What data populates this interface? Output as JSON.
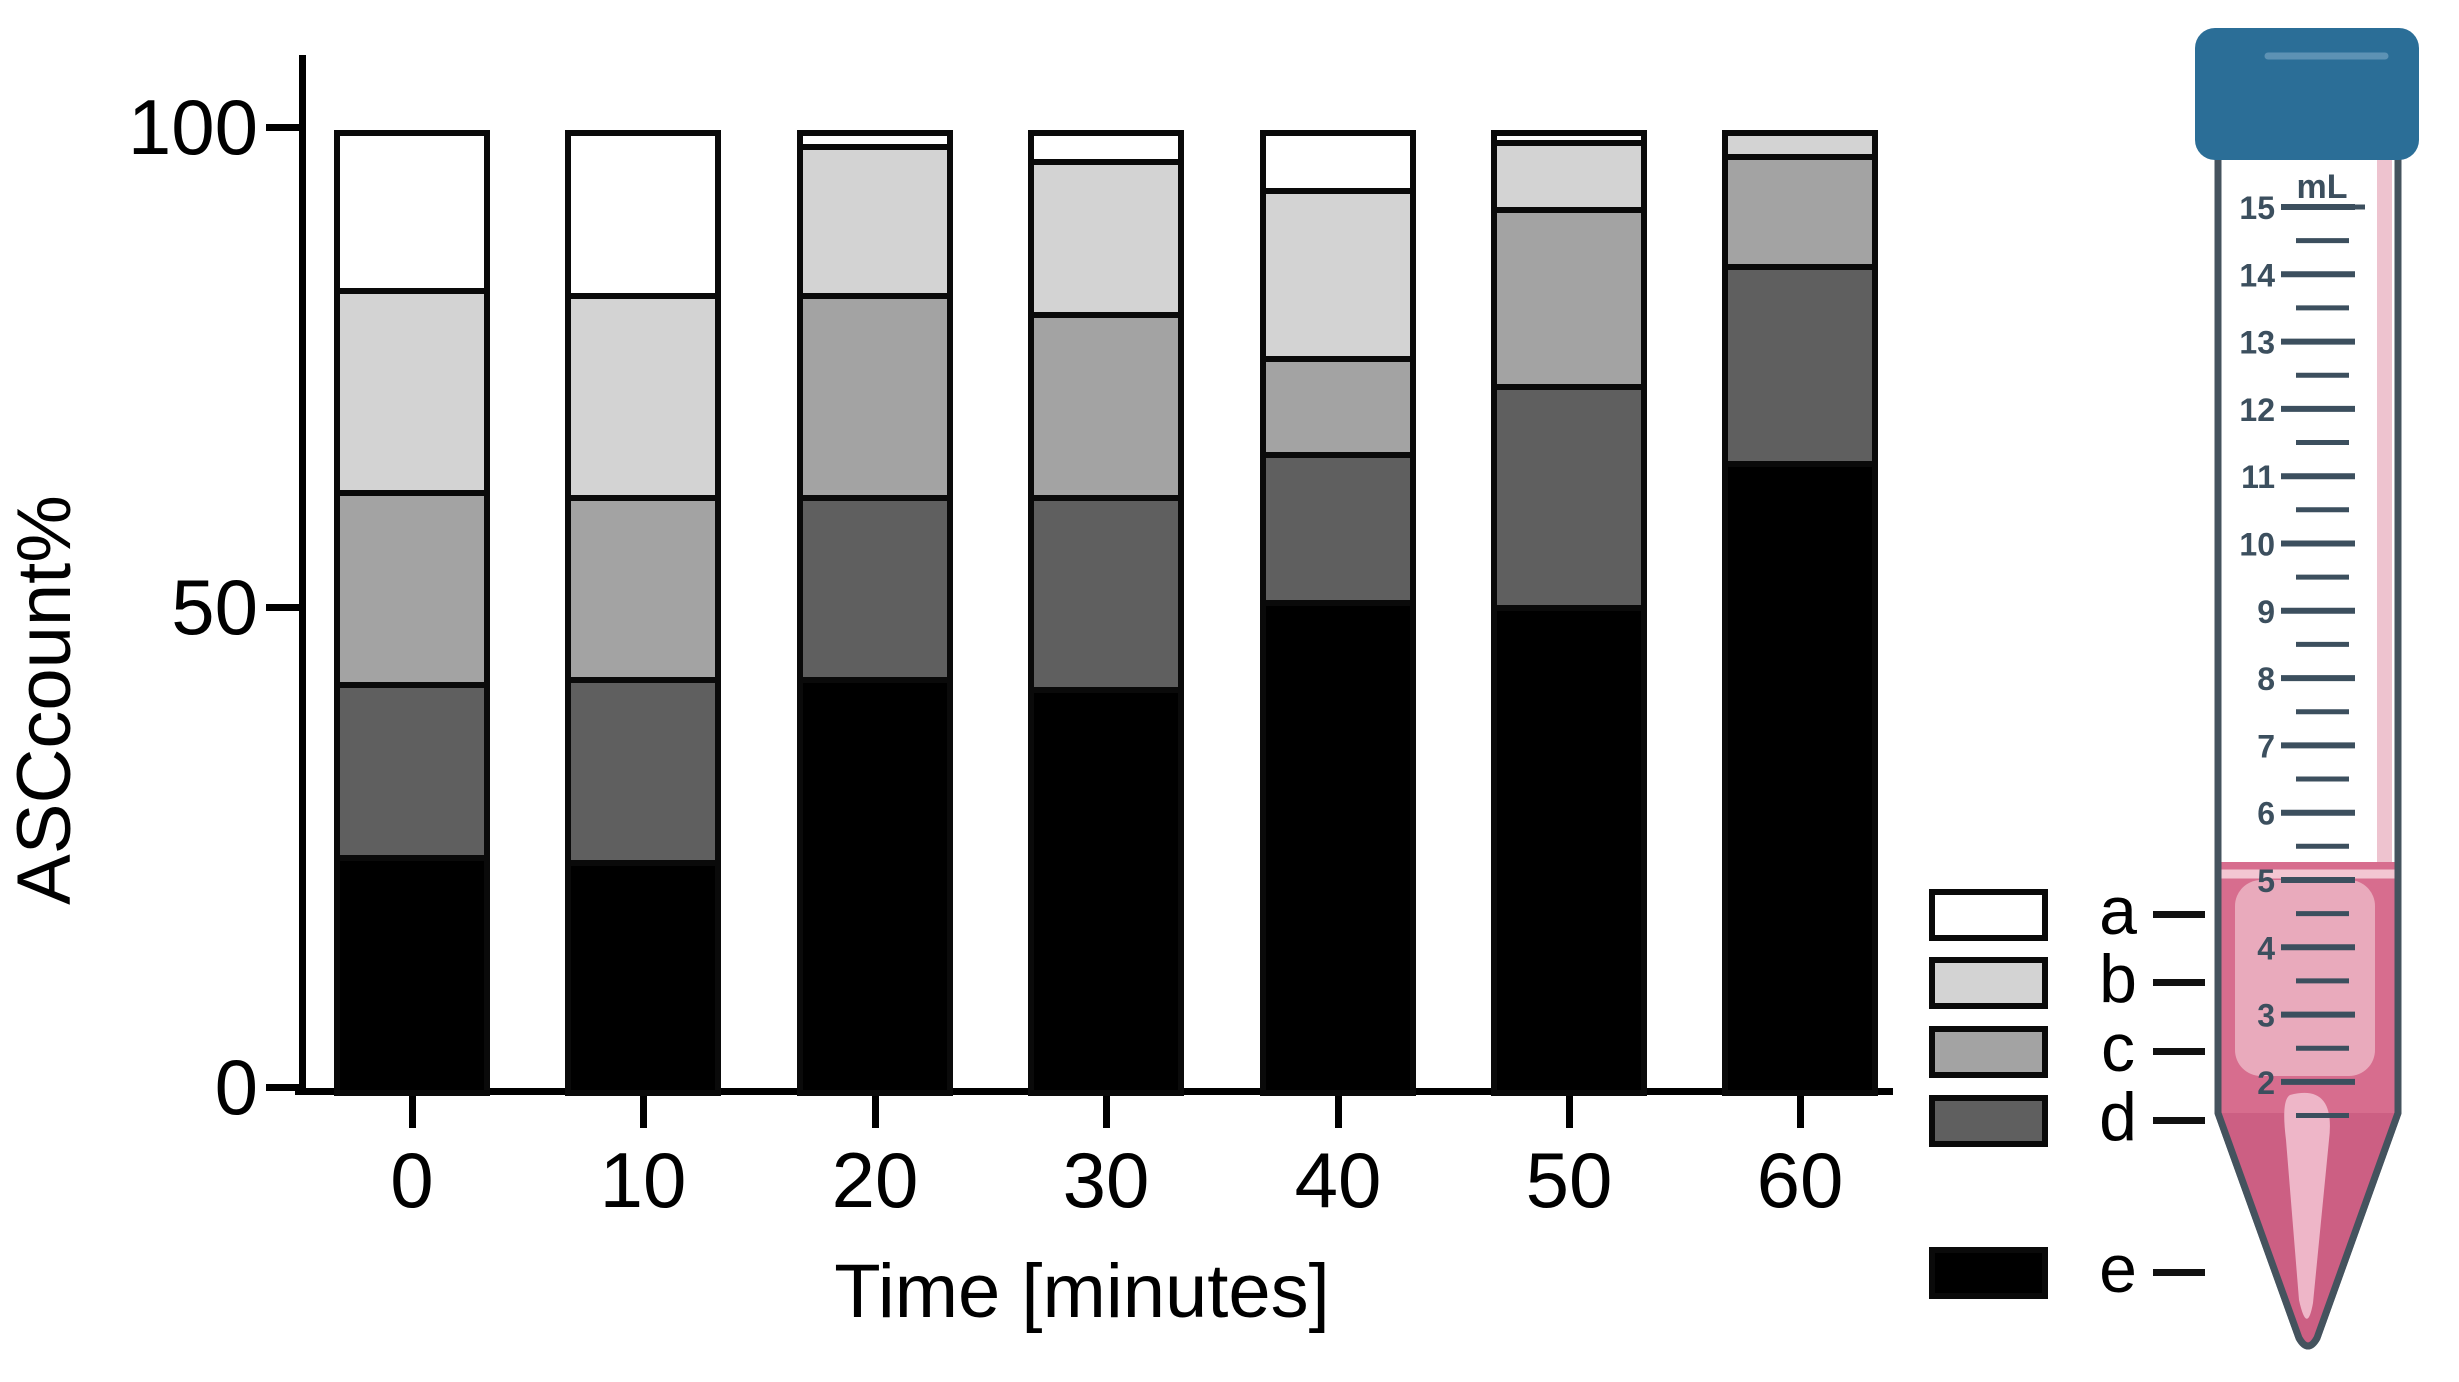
{
  "y_axis": {
    "label": "ASCcount%",
    "ticks": [
      {
        "value": 100,
        "label": "100"
      },
      {
        "value": 50,
        "label": "50"
      },
      {
        "value": 0,
        "label": "0"
      }
    ]
  },
  "x_axis": {
    "label": "Time [minutes]",
    "ticks": [
      "0",
      "10",
      "20",
      "30",
      "40",
      "50",
      "60"
    ]
  },
  "legend": {
    "entries": [
      {
        "key": "a",
        "color": "#ffffff"
      },
      {
        "key": "b",
        "color": "#d3d3d3"
      },
      {
        "key": "c",
        "color": "#a3a3a3"
      },
      {
        "key": "d",
        "color": "#5f5f5f"
      },
      {
        "key": "e",
        "color": "#000000"
      }
    ]
  },
  "chart_data": {
    "type": "bar",
    "stacked": true,
    "title": "",
    "xlabel": "Time [minutes]",
    "ylabel": "ASCcount%",
    "ylim": [
      0,
      100
    ],
    "grid": false,
    "legend_position": "right",
    "categories": [
      0,
      10,
      20,
      30,
      40,
      50,
      60
    ],
    "stack_order_bottom_to_top": [
      "e",
      "d",
      "c",
      "b",
      "a"
    ],
    "series": [
      {
        "name": "a",
        "color": "#ffffff",
        "values": [
          16.5,
          17,
          1.5,
          3,
          6,
          1,
          0
        ]
      },
      {
        "name": "b",
        "color": "#d3d3d3",
        "values": [
          21,
          21,
          15.5,
          16,
          17.5,
          7,
          2.5
        ]
      },
      {
        "name": "c",
        "color": "#a3a3a3",
        "values": [
          20,
          19,
          21,
          19,
          10,
          18.5,
          11.5
        ]
      },
      {
        "name": "d",
        "color": "#5f5f5f",
        "values": [
          18,
          19,
          19,
          20,
          15.5,
          23,
          20.5
        ]
      },
      {
        "name": "e",
        "color": "#000000",
        "values": [
          24.5,
          24,
          43,
          42,
          51,
          50.5,
          65.5
        ]
      }
    ]
  },
  "tube": {
    "unit_label": "mL",
    "major_tick_labels": [
      "15",
      "14",
      "13",
      "12",
      "11",
      "10",
      "9",
      "8",
      "7",
      "6",
      "5",
      "4",
      "3",
      "2"
    ],
    "liquid_level_ml": 5.3,
    "cap_color": "#2b6e97",
    "outline_color": "#45535e",
    "scale_color": "#3c4f5e",
    "liquid_color": "#d76d8e",
    "liquid_panel_color": "#e9aabc",
    "cone_liquid_color": "#cc5f83"
  }
}
